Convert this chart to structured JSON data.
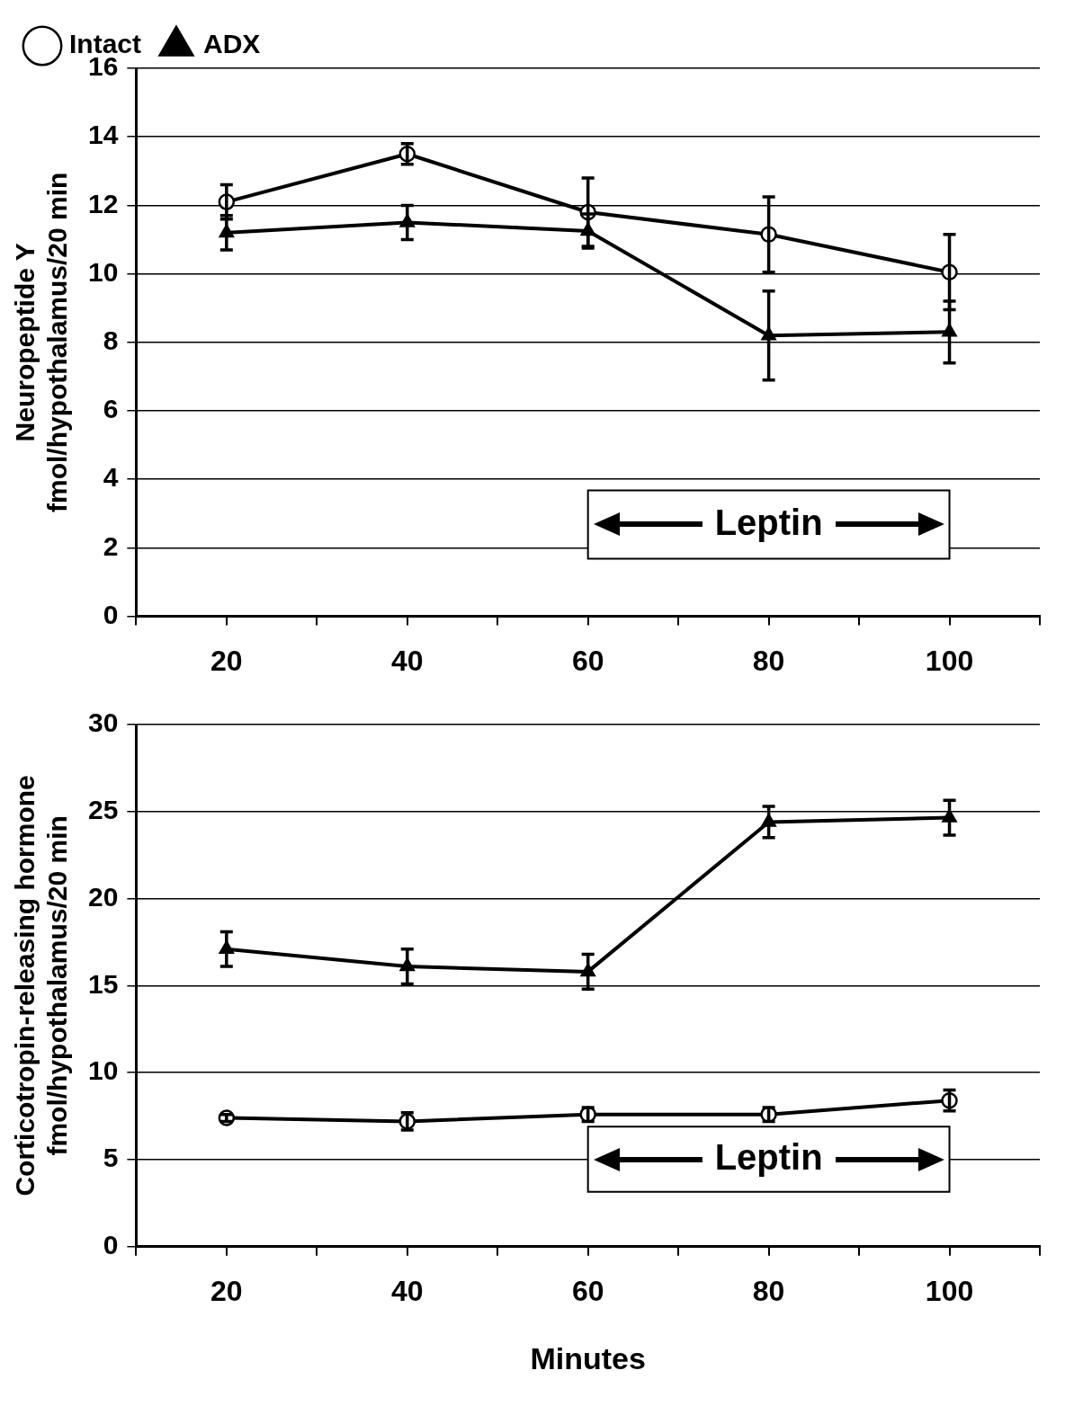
{
  "chart_data": [
    {
      "type": "line",
      "ylabel": "Neuropeptide Y\nfmol/hypothalamus/20 min",
      "x": [
        20,
        40,
        60,
        80,
        100
      ],
      "xlim": [
        10,
        110
      ],
      "xticks": [
        {
          "value": 10,
          "label": null
        },
        20,
        {
          "value": 30,
          "label": null
        },
        40,
        {
          "value": 50,
          "label": null
        },
        60,
        {
          "value": 70,
          "label": null
        },
        80,
        {
          "value": 90,
          "label": null
        },
        100,
        {
          "value": 110,
          "label": null
        }
      ],
      "ylim": [
        0,
        16
      ],
      "yticks": [
        0,
        2,
        4,
        6,
        8,
        10,
        12,
        14,
        16
      ],
      "grid": "y",
      "legend": "top left",
      "line_style": "solid",
      "series": [
        {
          "name": "Intact",
          "color": "#000000",
          "marker": "circle",
          "values": [
            12.1,
            13.5,
            11.8,
            11.15,
            10.05
          ],
          "errors": [
            0.5,
            0.3,
            1.0,
            1.1,
            1.1
          ]
        },
        {
          "name": "ADX",
          "color": "#000000",
          "marker": "triangle",
          "values": [
            11.2,
            11.5,
            11.25,
            8.2,
            8.3
          ],
          "errors": [
            0.5,
            0.5,
            0.5,
            1.3,
            0.9
          ]
        }
      ],
      "bands": [
        {
          "axis": "x",
          "from": 60,
          "to": 100,
          "label": "Leptin"
        }
      ]
    },
    {
      "type": "line",
      "ylabel": "Corticotropin-releasing hormone\nfmol/hypothalamus/20 min",
      "xlabel": "Minutes",
      "x": [
        20,
        40,
        60,
        80,
        100
      ],
      "xlim": [
        10,
        110
      ],
      "xticks": [
        {
          "value": 10,
          "label": null
        },
        20,
        {
          "value": 30,
          "label": null
        },
        40,
        {
          "value": 50,
          "label": null
        },
        60,
        {
          "value": 70,
          "label": null
        },
        80,
        {
          "value": 90,
          "label": null
        },
        100,
        {
          "value": 110,
          "label": null
        }
      ],
      "ylim": [
        0,
        30
      ],
      "yticks": [
        0,
        5,
        10,
        15,
        20,
        25,
        30
      ],
      "grid": "y",
      "legend": false,
      "line_style": "solid",
      "series": [
        {
          "color": "#000000",
          "marker": "circle",
          "values": [
            7.4,
            7.2,
            7.6,
            7.6,
            8.4
          ],
          "errors": [
            0.2,
            0.5,
            0.4,
            0.4,
            0.6
          ]
        },
        {
          "color": "#000000",
          "marker": "triangle",
          "values": [
            17.1,
            16.1,
            15.8,
            24.4,
            24.65
          ],
          "errors": [
            1.0,
            1.0,
            1.0,
            0.9,
            1.0
          ]
        }
      ],
      "bands": [
        {
          "axis": "x",
          "from": 60,
          "to": 100,
          "label": "Leptin"
        }
      ]
    }
  ]
}
